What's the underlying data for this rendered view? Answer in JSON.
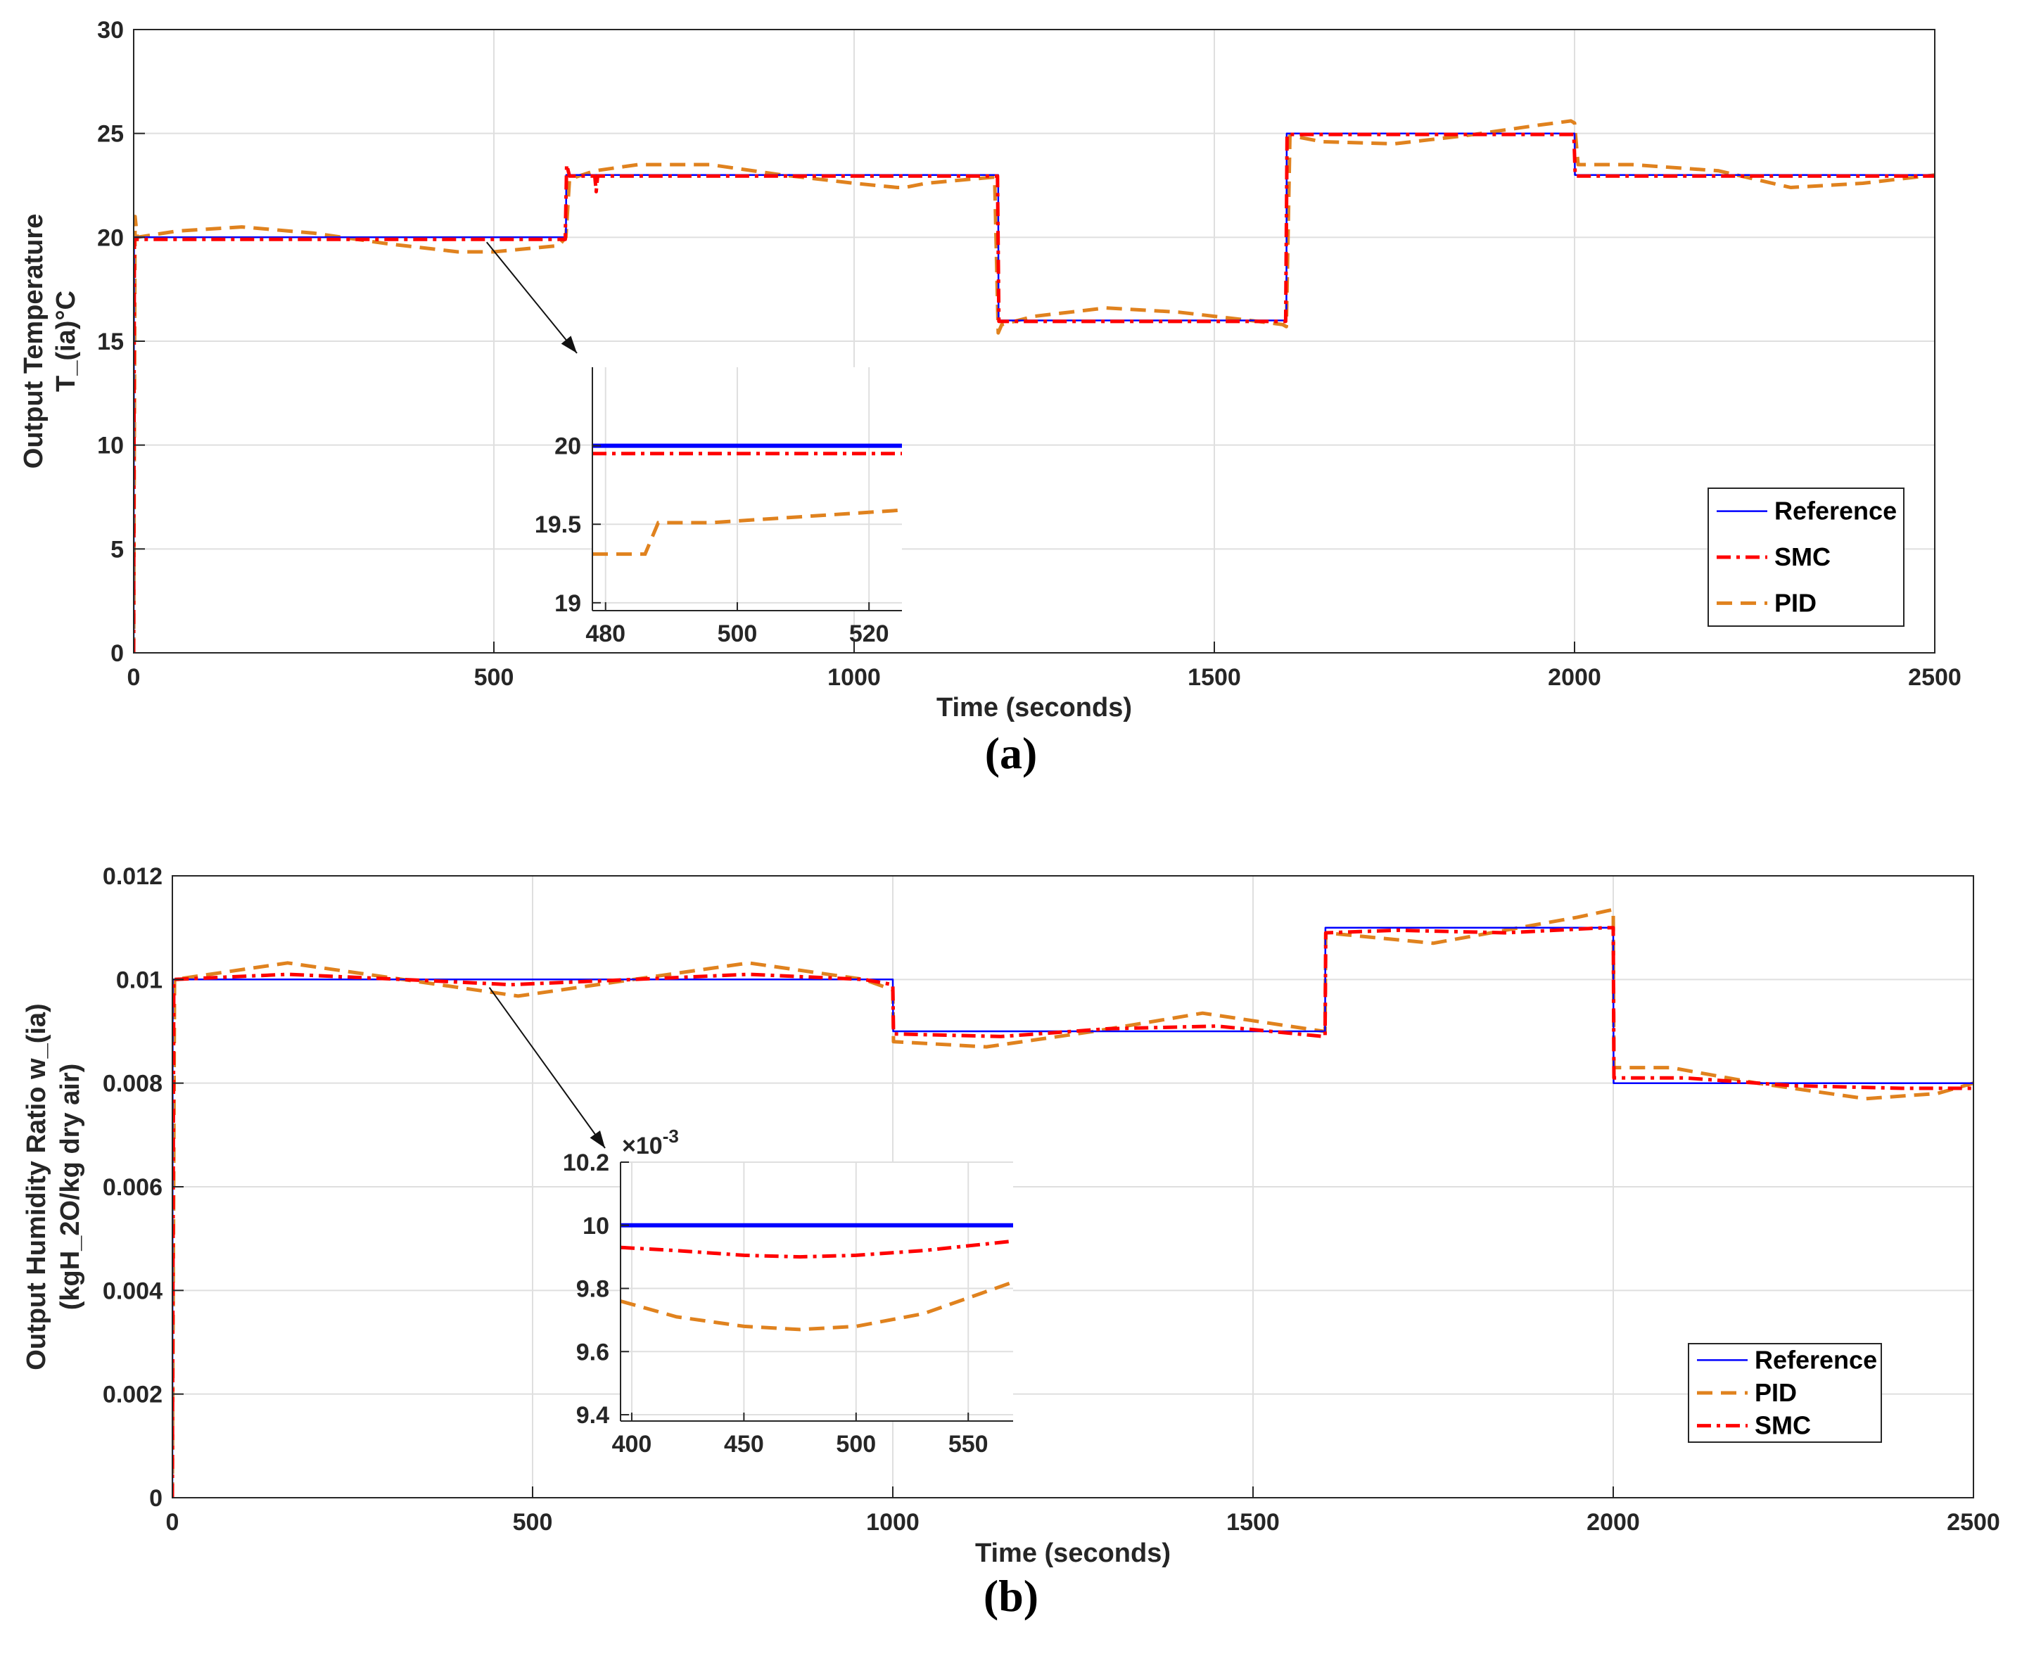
{
  "colors": {
    "reference": "#0000ff",
    "smc": "#ff0000",
    "pid": "#e0821e",
    "grid": "#dfdfdf",
    "axis": "#262626"
  },
  "chart_data": [
    {
      "id": "a",
      "panel_label": "(a)",
      "type": "line",
      "xlabel": "Time (seconds)",
      "ylabel_lines": [
        "Output Temperature",
        "T_(ia)°C"
      ],
      "xlim": [
        0,
        2500
      ],
      "ylim": [
        0,
        30
      ],
      "xticks": [
        0,
        500,
        1000,
        1500,
        2000,
        2500
      ],
      "xtick_labels": [
        "0",
        "500",
        "1000",
        "1500",
        "2000",
        "2500"
      ],
      "yticks": [
        0,
        5,
        10,
        15,
        20,
        25,
        30
      ],
      "ytick_labels": [
        "0",
        "5",
        "10",
        "15",
        "20",
        "25",
        "30"
      ],
      "grid": true,
      "legend_position": "bottom-right",
      "legend": [
        {
          "key": "reference",
          "label": "Reference",
          "style": "solid"
        },
        {
          "key": "smc",
          "label": "SMC",
          "style": "dashdot"
        },
        {
          "key": "pid",
          "label": "PID",
          "style": "dashed"
        }
      ],
      "series": [
        {
          "name": "Reference",
          "key": "reference",
          "x": [
            0,
            0.5,
            600,
            600.5,
            1200,
            1200.5,
            1600,
            1600.5,
            2000,
            2000.5,
            2500
          ],
          "y": [
            0,
            20,
            20,
            23,
            23,
            16,
            16,
            25,
            25,
            23,
            23
          ]
        },
        {
          "name": "SMC",
          "key": "smc",
          "x": [
            0,
            1,
            599,
            601,
            605,
            640,
            642,
            644,
            1199,
            1201,
            1599,
            1601,
            1999,
            2001,
            2500
          ],
          "y": [
            0,
            19.9,
            19.9,
            23.5,
            22.95,
            22.95,
            22.2,
            22.95,
            22.95,
            15.95,
            15.95,
            24.95,
            24.95,
            22.95,
            22.95
          ]
        },
        {
          "name": "PID",
          "key": "pid",
          "x": [
            0,
            2,
            5,
            60,
            150,
            250,
            350,
            450,
            500,
            590,
            600,
            605,
            640,
            700,
            800,
            900,
            1000,
            1060,
            1070,
            1100,
            1195,
            1200,
            1205,
            1250,
            1350,
            1450,
            1550,
            1595,
            1600,
            1605,
            1650,
            1750,
            1850,
            1950,
            1995,
            2000,
            2005,
            2080,
            2200,
            2300,
            2400,
            2500
          ],
          "y": [
            0,
            21,
            20.0,
            20.3,
            20.5,
            20.2,
            19.7,
            19.3,
            19.3,
            19.6,
            20.0,
            22.8,
            23.2,
            23.5,
            23.5,
            23.0,
            22.6,
            22.4,
            22.4,
            22.6,
            22.9,
            15.4,
            15.8,
            16.2,
            16.6,
            16.4,
            16.0,
            15.8,
            15.7,
            24.9,
            24.6,
            24.5,
            24.9,
            25.4,
            25.6,
            25.5,
            23.5,
            23.5,
            23.2,
            22.4,
            22.6,
            23.0
          ]
        }
      ],
      "inset": {
        "xlim": [
          478,
          525
        ],
        "ylim": [
          18.95,
          20.5
        ],
        "xticks": [
          480,
          500,
          520
        ],
        "xtick_labels": [
          "480",
          "500",
          "520"
        ],
        "yticks": [
          19,
          19.5,
          20
        ],
        "ytick_labels": [
          "19",
          "19.5",
          "20"
        ],
        "multiplier": "",
        "arrow_from": [
          490,
          19.9
        ],
        "series": [
          {
            "key": "reference",
            "x": [
              478,
              525
            ],
            "y": [
              20,
              20
            ]
          },
          {
            "key": "smc",
            "x": [
              478,
              525
            ],
            "y": [
              19.95,
              19.95
            ]
          },
          {
            "key": "pid",
            "x": [
              478,
              486,
              488,
              496,
              525
            ],
            "y": [
              19.31,
              19.31,
              19.51,
              19.51,
              19.59
            ]
          }
        ]
      }
    },
    {
      "id": "b",
      "panel_label": "(b)",
      "type": "line",
      "xlabel": "Time (seconds)",
      "ylabel_lines": [
        "Output Humidity Ratio w_(ia)",
        "(kgH_2O/kg dry air)"
      ],
      "xlim": [
        0,
        2500
      ],
      "ylim": [
        0,
        0.012
      ],
      "xticks": [
        0,
        500,
        1000,
        1500,
        2000,
        2500
      ],
      "xtick_labels": [
        "0",
        "500",
        "1000",
        "1500",
        "2000",
        "2500"
      ],
      "yticks": [
        0,
        0.002,
        0.004,
        0.006,
        0.008,
        0.01,
        0.012
      ],
      "ytick_labels": [
        "0",
        "0.002",
        "0.004",
        "0.006",
        "0.008",
        "0.01",
        "0.012"
      ],
      "grid": true,
      "legend_position": "bottom-right",
      "legend": [
        {
          "key": "reference",
          "label": "Reference",
          "style": "solid"
        },
        {
          "key": "pid",
          "label": "PID",
          "style": "dashed"
        },
        {
          "key": "smc",
          "label": "SMC",
          "style": "dashdot"
        }
      ],
      "series": [
        {
          "name": "Reference",
          "key": "reference",
          "x": [
            0,
            0.5,
            1000,
            1000.5,
            1600,
            1600.5,
            2000,
            2000.5,
            2500
          ],
          "y": [
            0,
            0.01,
            0.01,
            0.009,
            0.009,
            0.011,
            0.011,
            0.008,
            0.008
          ]
        },
        {
          "name": "SMC",
          "key": "smc",
          "x": [
            0,
            2,
            160,
            320,
            470,
            640,
            800,
            960,
            1000,
            1001,
            1150,
            1300,
            1450,
            1598,
            1600,
            1601,
            1700,
            1850,
            1990,
            2000,
            2001,
            2100,
            2250,
            2400,
            2500
          ],
          "y": [
            0,
            0.01,
            0.0101,
            0.01,
            0.0099,
            0.01,
            0.0101,
            0.01,
            0.0099,
            0.00895,
            0.0089,
            0.00905,
            0.0091,
            0.0089,
            0.0089,
            0.0109,
            0.01095,
            0.0109,
            0.011,
            0.011,
            0.0081,
            0.0081,
            0.00795,
            0.0079,
            0.0079
          ]
        },
        {
          "name": "PID",
          "key": "pid",
          "x": [
            0,
            3,
            160,
            320,
            480,
            640,
            800,
            960,
            1000,
            1001,
            1130,
            1280,
            1430,
            1598,
            1600,
            1601,
            1750,
            1950,
            2000,
            2001,
            2080,
            2200,
            2350,
            2450,
            2500
          ],
          "y": [
            0,
            0.01,
            0.01032,
            0.01,
            0.00968,
            0.01,
            0.01032,
            0.01,
            0.0098,
            0.0088,
            0.0087,
            0.009,
            0.00935,
            0.009,
            0.009,
            0.0109,
            0.0107,
            0.0112,
            0.01135,
            0.0083,
            0.0083,
            0.008,
            0.0077,
            0.0078,
            0.008
          ]
        }
      ],
      "inset": {
        "xlim": [
          395,
          570
        ],
        "ylim": [
          0.00938,
          0.0102
        ],
        "xticks": [
          400,
          450,
          500,
          550
        ],
        "xtick_labels": [
          "400",
          "450",
          "500",
          "550"
        ],
        "yticks": [
          0.0094,
          0.0096,
          0.0098,
          0.01,
          0.0102
        ],
        "ytick_labels": [
          "9.4",
          "9.6",
          "9.8",
          "10",
          "10.2"
        ],
        "multiplier": "×10",
        "multiplier_exp": "-3",
        "arrow_from": [
          440,
          0.0099
        ],
        "series": [
          {
            "key": "reference",
            "x": [
              395,
              570
            ],
            "y": [
              0.01,
              0.01
            ]
          },
          {
            "key": "smc",
            "x": [
              395,
              420,
              450,
              475,
              500,
              530,
              570
            ],
            "y": [
              0.00993,
              0.00992,
              0.009905,
              0.0099,
              0.009905,
              0.00992,
              0.00995
            ]
          },
          {
            "key": "pid",
            "x": [
              395,
              420,
              450,
              475,
              500,
              530,
              570
            ],
            "y": [
              0.00976,
              0.00971,
              0.00968,
              0.00967,
              0.00968,
              0.00972,
              0.00982
            ]
          }
        ]
      }
    }
  ]
}
